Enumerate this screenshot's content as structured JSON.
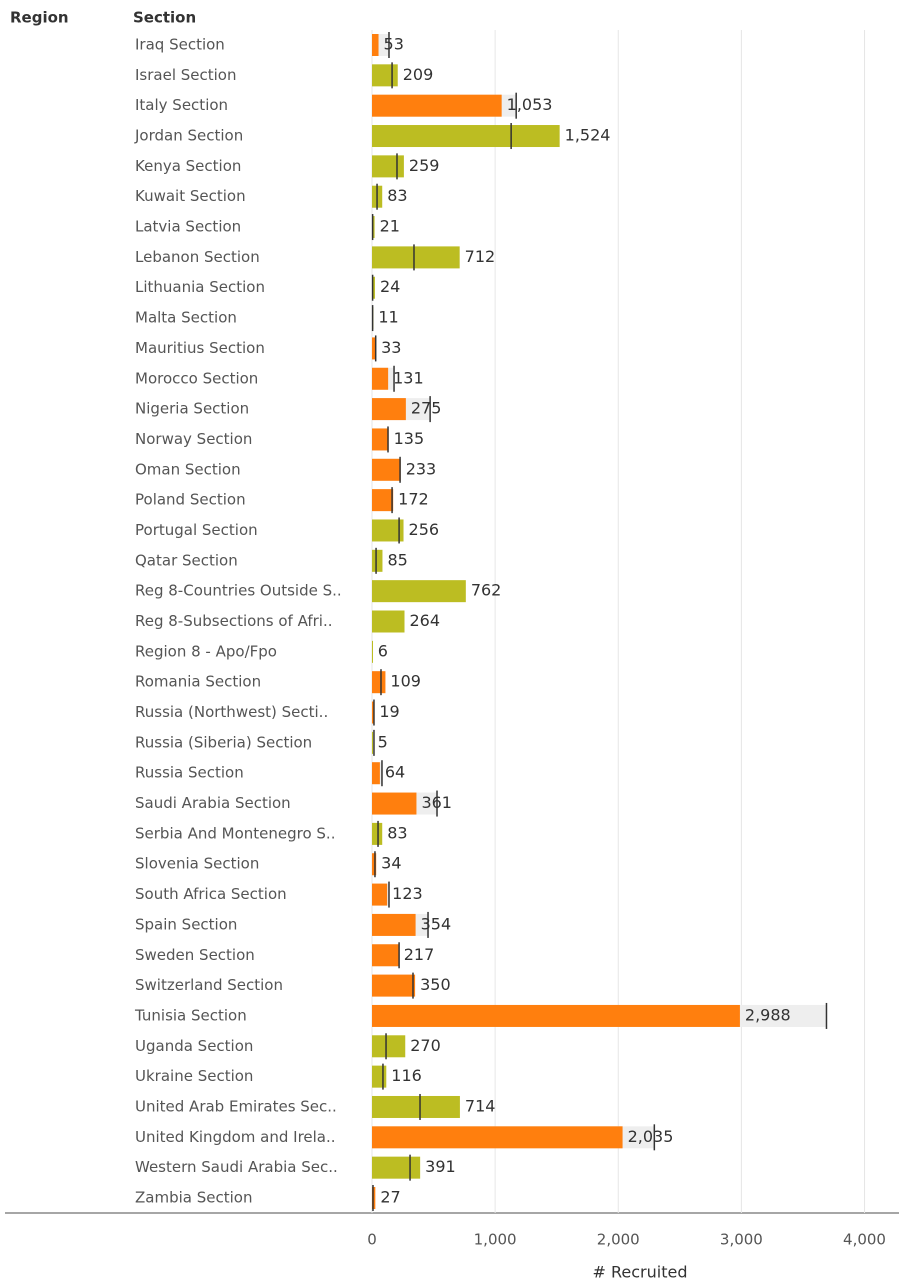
{
  "chart_data": {
    "type": "bullet",
    "headers": [
      "Region",
      "Section"
    ],
    "x_label": "# Recruited",
    "categories": [
      "Iraq Section",
      "Israel Section",
      "Italy Section",
      "Jordan Section",
      "Kenya Section",
      "Kuwait Section",
      "Latvia Section",
      "Lebanon Section",
      "Lithuania Section",
      "Malta Section",
      "Mauritius Section",
      "Morocco Section",
      "Nigeria Section",
      "Norway Section",
      "Oman Section",
      "Poland Section",
      "Portugal Section",
      "Qatar Section",
      "Reg 8-Countries Outside S..",
      "Reg 8-Subsections of Afri..",
      "Region 8 - Apo/Fpo",
      "Romania Section",
      "Russia (Northwest) Secti..",
      "Russia (Siberia) Section",
      "Russia Section",
      "Saudi Arabia Section",
      "Serbia And Montenegro S..",
      "Slovenia Section",
      "South Africa Section",
      "Spain Section",
      "Sweden Section",
      "Switzerland Section",
      "Tunisia Section",
      "Uganda Section",
      "Ukraine Section",
      "United Arab Emirates Sec..",
      "United Kingdom and Irela..",
      "Western Saudi Arabia Sec..",
      "Zambia Section"
    ],
    "values": [
      53,
      209,
      1053,
      1524,
      259,
      83,
      21,
      712,
      24,
      11,
      33,
      131,
      275,
      135,
      233,
      172,
      256,
      85,
      762,
      264,
      6,
      109,
      19,
      5,
      64,
      361,
      83,
      34,
      123,
      354,
      217,
      350,
      2988,
      270,
      116,
      714,
      2035,
      391,
      27
    ],
    "value_labels": [
      "53",
      "209",
      "1,053",
      "1,524",
      "259",
      "83",
      "21",
      "712",
      "24",
      "11",
      "33",
      "131",
      "275",
      "135",
      "233",
      "172",
      "256",
      "85",
      "762",
      "264",
      "6",
      "109",
      "19",
      "5",
      "64",
      "361",
      "83",
      "34",
      "123",
      "354",
      "217",
      "350",
      "2,988",
      "270",
      "116",
      "714",
      "2,035",
      "391",
      "27"
    ],
    "targets": [
      138,
      163,
      1171,
      1130,
      203,
      41,
      5,
      341,
      5,
      5,
      30,
      179,
      472,
      130,
      228,
      163,
      220,
      33,
      null,
      null,
      null,
      73,
      16,
      16,
      81,
      528,
      49,
      24,
      138,
      455,
      220,
      333,
      3691,
      114,
      89,
      390,
      2293,
      309,
      8
    ],
    "colors": [
      "#ff7f0e",
      "#bcbd22",
      "#ff7f0e",
      "#bcbd22",
      "#bcbd22",
      "#bcbd22",
      "#bcbd22",
      "#bcbd22",
      "#bcbd22",
      "#bcbd22",
      "#ff7f0e",
      "#ff7f0e",
      "#ff7f0e",
      "#ff7f0e",
      "#ff7f0e",
      "#ff7f0e",
      "#bcbd22",
      "#bcbd22",
      "#bcbd22",
      "#bcbd22",
      "#bcbd22",
      "#ff7f0e",
      "#ff7f0e",
      "#bcbd22",
      "#ff7f0e",
      "#ff7f0e",
      "#bcbd22",
      "#ff7f0e",
      "#ff7f0e",
      "#ff7f0e",
      "#ff7f0e",
      "#ff7f0e",
      "#ff7f0e",
      "#bcbd22",
      "#bcbd22",
      "#bcbd22",
      "#ff7f0e",
      "#bcbd22",
      "#ff7f0e"
    ],
    "xlim": [
      0,
      4280
    ],
    "xticks": [
      0,
      {
        "value": 1000,
        "label": "1,000"
      },
      {
        "value": 2000,
        "label": "2,000"
      },
      {
        "value": 3000,
        "label": "3,000"
      },
      {
        "value": 4000,
        "label": "4,000"
      }
    ],
    "grid": true
  }
}
